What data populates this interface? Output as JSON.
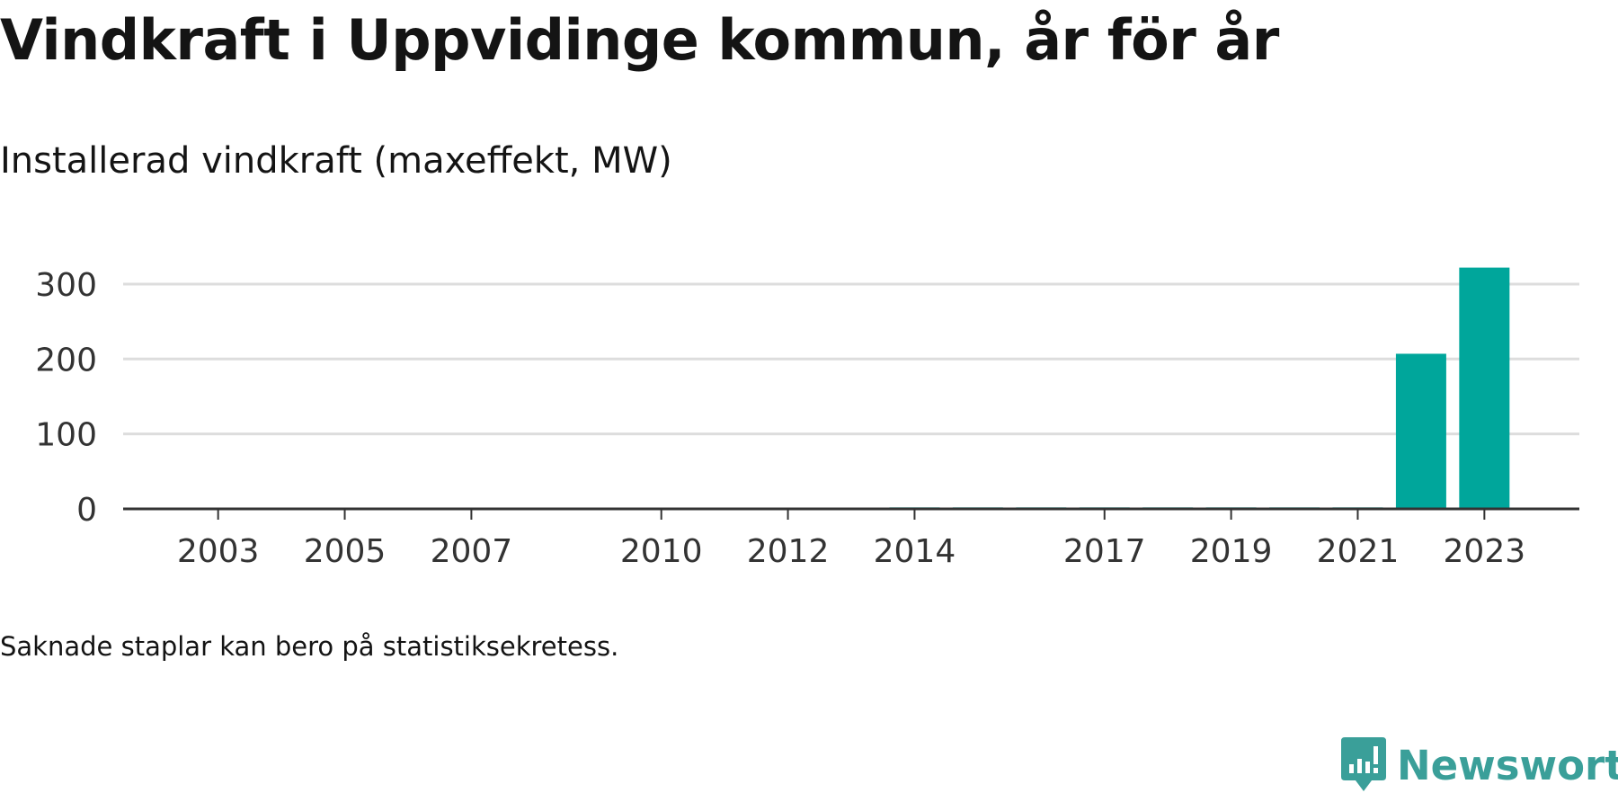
{
  "title": "Vindkraft i Uppvidinge kommun, år för år",
  "subtitle": "Installerad vindkraft (maxeffekt, MW)",
  "footnote": "Saknade staplar kan bero på statistiksekretess.",
  "brand": {
    "name": "Newsworthy",
    "color": "#3a9f99"
  },
  "colors": {
    "bar": "#00a69b",
    "grid": "#dddddd",
    "axis": "#333333"
  },
  "chart_data": {
    "type": "bar",
    "title": "Vindkraft i Uppvidinge kommun, år för år",
    "subtitle": "Installerad vindkraft (maxeffekt, MW)",
    "xlabel": "",
    "ylabel": "",
    "ylim": [
      0,
      330
    ],
    "yticks": [
      0,
      100,
      200,
      300
    ],
    "xlim": [
      2001.5,
      2024.5
    ],
    "xticks": [
      2003,
      2005,
      2007,
      2010,
      2012,
      2014,
      2017,
      2019,
      2021,
      2023
    ],
    "categories": [
      2014,
      2015,
      2016,
      2017,
      2018,
      2019,
      2020,
      2021,
      2022,
      2023
    ],
    "values": [
      2,
      2,
      2,
      2,
      2,
      2,
      2,
      2,
      207,
      322
    ],
    "grid": true,
    "legend": "none"
  }
}
